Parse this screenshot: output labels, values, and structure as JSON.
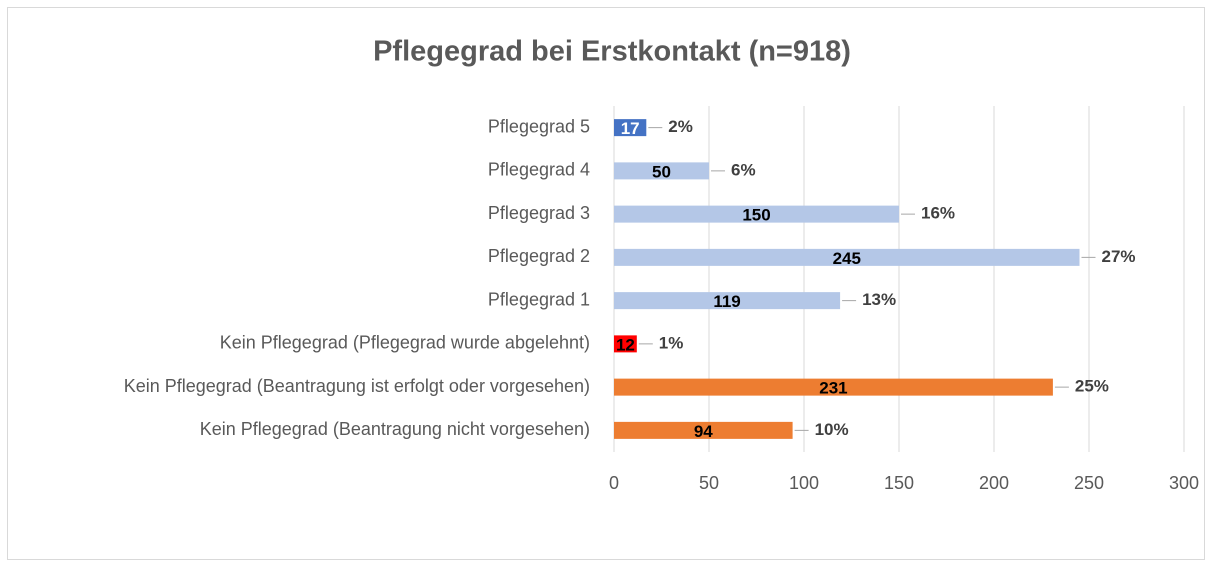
{
  "chart_data": {
    "type": "bar",
    "orientation": "horizontal",
    "title": "Pflegegrad bei Erstkontakt (n=918)",
    "categories": [
      "Pflegegrad 5",
      "Pflegegrad 4",
      "Pflegegrad 3",
      "Pflegegrad 2",
      "Pflegegrad 1",
      "Kein Pflegegrad (Pflegegrad wurde abgelehnt)",
      "Kein Pflegegrad (Beantragung ist erfolgt oder vorgesehen)",
      "Kein Pflegegrad (Beantragung nicht vorgesehen)"
    ],
    "values": [
      17,
      50,
      150,
      245,
      119,
      12,
      231,
      94
    ],
    "percentage_labels": [
      "2%",
      "6%",
      "16%",
      "27%",
      "13%",
      "1%",
      "25%",
      "10%"
    ],
    "colors": [
      "#4472c4",
      "#b4c7e7",
      "#b4c7e7",
      "#b4c7e7",
      "#b4c7e7",
      "#ff0000",
      "#ed7d31",
      "#ed7d31"
    ],
    "xlim": [
      0,
      300
    ],
    "xticks": [
      0,
      50,
      100,
      150,
      200,
      250,
      300
    ],
    "grid": true
  }
}
